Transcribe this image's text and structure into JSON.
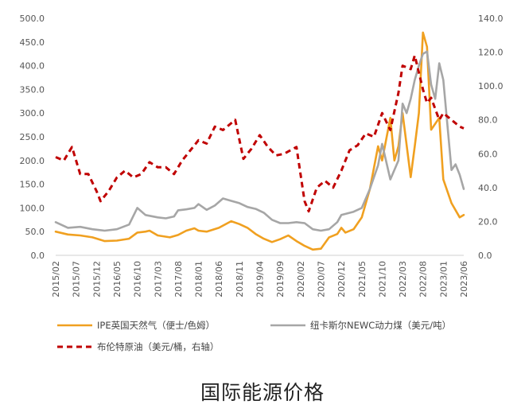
{
  "caption": "国际能源价格",
  "chart_data": {
    "type": "line",
    "title": "",
    "x_ticks": [
      "2015/02",
      "2015/07",
      "2015/12",
      "2016/05",
      "2016/10",
      "2017/03",
      "2017/08",
      "2018/01",
      "2018/06",
      "2018/11",
      "2019/04",
      "2019/09",
      "2020/02",
      "2020/07",
      "2020/12",
      "2021/05",
      "2021/10",
      "2022/03",
      "2022/08",
      "2023/01",
      "2023/06"
    ],
    "y_left": {
      "min": 0,
      "max": 500,
      "ticks": [
        "0.0",
        "50.0",
        "100.0",
        "150.0",
        "200.0",
        "250.0",
        "300.0",
        "350.0",
        "400.0",
        "450.0",
        "500.0"
      ]
    },
    "y_right": {
      "min": 0,
      "max": 140,
      "ticks": [
        "0.0",
        "20.0",
        "40.0",
        "60.0",
        "80.0",
        "100.0",
        "120.0",
        "140.0"
      ]
    },
    "grid": false,
    "legend_position": "bottom",
    "series": [
      {
        "name": "IPE英国天然气（便士/色姆）",
        "axis": "left",
        "color": "#f0a020",
        "style": "solid",
        "points": [
          [
            "2015/02",
            50
          ],
          [
            "2015/05",
            44
          ],
          [
            "2015/08",
            42
          ],
          [
            "2015/11",
            38
          ],
          [
            "2016/02",
            30
          ],
          [
            "2016/05",
            31
          ],
          [
            "2016/08",
            35
          ],
          [
            "2016/10",
            48
          ],
          [
            "2016/12",
            50
          ],
          [
            "2017/01",
            52
          ],
          [
            "2017/03",
            42
          ],
          [
            "2017/06",
            38
          ],
          [
            "2017/08",
            43
          ],
          [
            "2017/10",
            52
          ],
          [
            "2017/12",
            57
          ],
          [
            "2018/01",
            52
          ],
          [
            "2018/03",
            50
          ],
          [
            "2018/06",
            58
          ],
          [
            "2018/09",
            72
          ],
          [
            "2018/11",
            66
          ],
          [
            "2019/01",
            58
          ],
          [
            "2019/03",
            45
          ],
          [
            "2019/05",
            35
          ],
          [
            "2019/07",
            28
          ],
          [
            "2019/09",
            34
          ],
          [
            "2019/11",
            42
          ],
          [
            "2020/01",
            30
          ],
          [
            "2020/03",
            20
          ],
          [
            "2020/05",
            12
          ],
          [
            "2020/07",
            14
          ],
          [
            "2020/09",
            38
          ],
          [
            "2020/11",
            45
          ],
          [
            "2020/12",
            58
          ],
          [
            "2021/01",
            48
          ],
          [
            "2021/03",
            55
          ],
          [
            "2021/05",
            80
          ],
          [
            "2021/07",
            140
          ],
          [
            "2021/09",
            230
          ],
          [
            "2021/10",
            200
          ],
          [
            "2021/12",
            290
          ],
          [
            "2022/01",
            200
          ],
          [
            "2022/02",
            230
          ],
          [
            "2022/03",
            300
          ],
          [
            "2022/05",
            165
          ],
          [
            "2022/06",
            230
          ],
          [
            "2022/07",
            300
          ],
          [
            "2022/08",
            470
          ],
          [
            "2022/09",
            440
          ],
          [
            "2022/10",
            265
          ],
          [
            "2022/12",
            290
          ],
          [
            "2023/01",
            160
          ],
          [
            "2023/03",
            110
          ],
          [
            "2023/05",
            80
          ],
          [
            "2023/06",
            85
          ]
        ]
      },
      {
        "name": "纽卡斯尔NEWC动力煤（美元/吨）",
        "axis": "left",
        "color": "#a6a6a6",
        "style": "solid",
        "points": [
          [
            "2015/02",
            70
          ],
          [
            "2015/05",
            58
          ],
          [
            "2015/08",
            60
          ],
          [
            "2015/11",
            55
          ],
          [
            "2016/02",
            52
          ],
          [
            "2016/05",
            55
          ],
          [
            "2016/08",
            65
          ],
          [
            "2016/10",
            100
          ],
          [
            "2016/12",
            85
          ],
          [
            "2017/03",
            80
          ],
          [
            "2017/05",
            78
          ],
          [
            "2017/07",
            82
          ],
          [
            "2017/08",
            95
          ],
          [
            "2017/10",
            97
          ],
          [
            "2017/12",
            100
          ],
          [
            "2018/01",
            108
          ],
          [
            "2018/03",
            96
          ],
          [
            "2018/05",
            105
          ],
          [
            "2018/07",
            120
          ],
          [
            "2018/09",
            115
          ],
          [
            "2018/11",
            110
          ],
          [
            "2019/01",
            102
          ],
          [
            "2019/03",
            98
          ],
          [
            "2019/05",
            90
          ],
          [
            "2019/07",
            75
          ],
          [
            "2019/09",
            68
          ],
          [
            "2019/11",
            68
          ],
          [
            "2020/01",
            70
          ],
          [
            "2020/03",
            68
          ],
          [
            "2020/05",
            55
          ],
          [
            "2020/07",
            52
          ],
          [
            "2020/09",
            55
          ],
          [
            "2020/11",
            70
          ],
          [
            "2020/12",
            85
          ],
          [
            "2021/03",
            92
          ],
          [
            "2021/05",
            100
          ],
          [
            "2021/07",
            140
          ],
          [
            "2021/09",
            190
          ],
          [
            "2021/10",
            235
          ],
          [
            "2021/12",
            160
          ],
          [
            "2022/02",
            200
          ],
          [
            "2022/03",
            320
          ],
          [
            "2022/04",
            300
          ],
          [
            "2022/05",
            330
          ],
          [
            "2022/06",
            370
          ],
          [
            "2022/07",
            400
          ],
          [
            "2022/08",
            425
          ],
          [
            "2022/09",
            430
          ],
          [
            "2022/10",
            360
          ],
          [
            "2022/11",
            330
          ],
          [
            "2022/12",
            405
          ],
          [
            "2023/01",
            370
          ],
          [
            "2023/03",
            180
          ],
          [
            "2023/04",
            192
          ],
          [
            "2023/05",
            170
          ],
          [
            "2023/06",
            140
          ]
        ]
      },
      {
        "name": "布伦特原油（美元/桶，右轴）",
        "axis": "right",
        "color": "#c00000",
        "style": "dashed",
        "points": [
          [
            "2015/02",
            58
          ],
          [
            "2015/04",
            56
          ],
          [
            "2015/06",
            64
          ],
          [
            "2015/08",
            48
          ],
          [
            "2015/10",
            48
          ],
          [
            "2015/12",
            38
          ],
          [
            "2016/01",
            32
          ],
          [
            "2016/03",
            38
          ],
          [
            "2016/05",
            46
          ],
          [
            "2016/07",
            50
          ],
          [
            "2016/09",
            46
          ],
          [
            "2016/11",
            48
          ],
          [
            "2017/01",
            55
          ],
          [
            "2017/03",
            52
          ],
          [
            "2017/05",
            52
          ],
          [
            "2017/07",
            48
          ],
          [
            "2017/09",
            56
          ],
          [
            "2017/11",
            62
          ],
          [
            "2018/01",
            68
          ],
          [
            "2018/03",
            66
          ],
          [
            "2018/05",
            76
          ],
          [
            "2018/07",
            74
          ],
          [
            "2018/10",
            80
          ],
          [
            "2018/12",
            57
          ],
          [
            "2019/02",
            63
          ],
          [
            "2019/04",
            71
          ],
          [
            "2019/06",
            64
          ],
          [
            "2019/08",
            59
          ],
          [
            "2019/10",
            60
          ],
          [
            "2020/01",
            64
          ],
          [
            "2020/03",
            32
          ],
          [
            "2020/04",
            26
          ],
          [
            "2020/06",
            40
          ],
          [
            "2020/08",
            44
          ],
          [
            "2020/10",
            40
          ],
          [
            "2020/12",
            50
          ],
          [
            "2021/02",
            62
          ],
          [
            "2021/04",
            65
          ],
          [
            "2021/06",
            72
          ],
          [
            "2021/08",
            70
          ],
          [
            "2021/10",
            84
          ],
          [
            "2021/12",
            74
          ],
          [
            "2022/02",
            96
          ],
          [
            "2022/03",
            112
          ],
          [
            "2022/05",
            110
          ],
          [
            "2022/06",
            118
          ],
          [
            "2022/08",
            98
          ],
          [
            "2022/09",
            90
          ],
          [
            "2022/10",
            93
          ],
          [
            "2022/12",
            80
          ],
          [
            "2023/01",
            84
          ],
          [
            "2023/03",
            80
          ],
          [
            "2023/05",
            76
          ],
          [
            "2023/06",
            75
          ]
        ]
      }
    ]
  }
}
